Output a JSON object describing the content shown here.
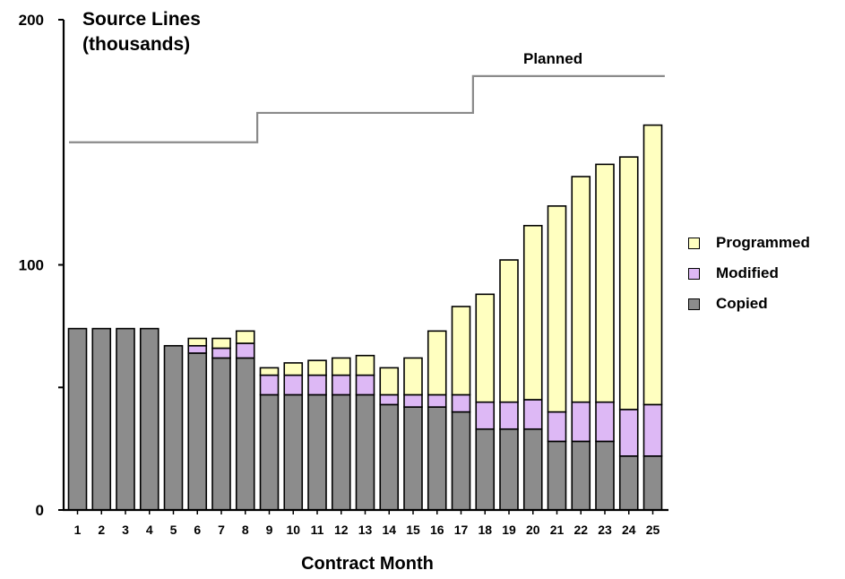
{
  "chart_data": {
    "type": "bar",
    "stacked": true,
    "ylabel": "Source Lines\n(thousands)",
    "xlabel": "Contract Month",
    "ylim": [
      0,
      200
    ],
    "yticks": [
      0,
      100,
      200
    ],
    "ytick_minor": [
      50
    ],
    "categories": [
      "1",
      "2",
      "3",
      "4",
      "5",
      "6",
      "7",
      "8",
      "9",
      "10",
      "11",
      "12",
      "13",
      "14",
      "15",
      "16",
      "17",
      "18",
      "19",
      "20",
      "21",
      "22",
      "23",
      "24",
      "25"
    ],
    "series": [
      {
        "name": "Copied",
        "color": "#8c8c8c",
        "values": [
          74,
          74,
          74,
          74,
          67,
          64,
          62,
          62,
          47,
          47,
          47,
          47,
          47,
          43,
          42,
          42,
          40,
          33,
          33,
          33,
          28,
          28,
          28,
          22,
          22
        ]
      },
      {
        "name": "Modified",
        "color": "#ddb8f5",
        "values": [
          0,
          0,
          0,
          0,
          0,
          3,
          4,
          6,
          8,
          8,
          8,
          8,
          8,
          4,
          5,
          5,
          7,
          11,
          11,
          12,
          12,
          16,
          16,
          19,
          21
        ]
      },
      {
        "name": "Programmed",
        "color": "#ffffc0",
        "values": [
          0,
          0,
          0,
          0,
          0,
          3,
          4,
          5,
          3,
          5,
          6,
          7,
          8,
          11,
          15,
          26,
          36,
          44,
          58,
          71,
          84,
          92,
          97,
          103,
          114
        ]
      }
    ],
    "planned": {
      "label": "Planned",
      "steps": [
        {
          "from": 0.5,
          "to": 8.5,
          "value": 150
        },
        {
          "from": 8.5,
          "to": 17.5,
          "value": 162
        },
        {
          "from": 17.5,
          "to": 25.5,
          "value": 177
        }
      ]
    },
    "legend_position": "right",
    "grid": false
  }
}
